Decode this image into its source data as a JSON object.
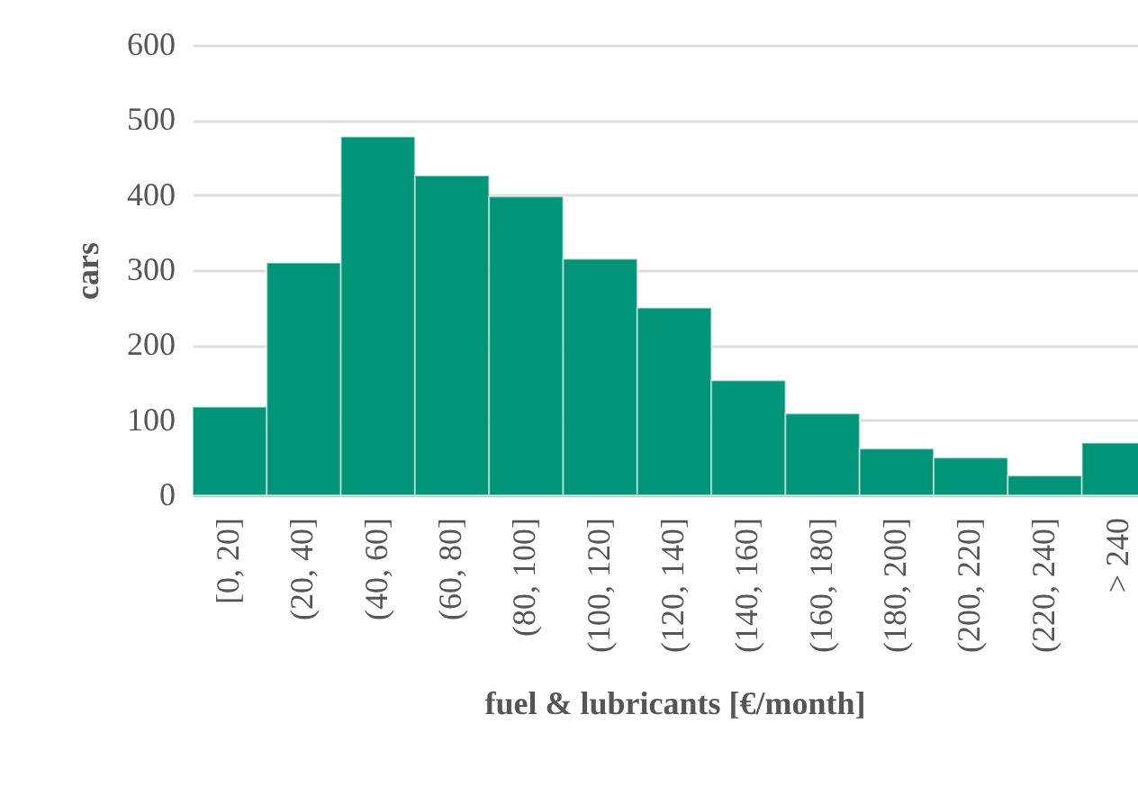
{
  "chart_data": {
    "type": "bar",
    "xlabel": "fuel & lubricants [€/month]",
    "ylabel": "cars",
    "categories": [
      "[0, 20]",
      "(20, 40]",
      "(40, 60]",
      "(60, 80]",
      "(80, 100]",
      "(100, 120]",
      "(120, 140]",
      "(140, 160]",
      "(160, 180]",
      "(180, 200]",
      "(200, 220]",
      "(220, 240]",
      "> 240"
    ],
    "values": [
      118,
      310,
      478,
      426,
      398,
      315,
      250,
      153,
      109,
      62,
      50,
      26,
      70
    ],
    "color": "#009479",
    "ylim": [
      0,
      600
    ],
    "yticks": [
      0,
      100,
      200,
      300,
      400,
      500,
      600
    ],
    "grid": "y"
  }
}
